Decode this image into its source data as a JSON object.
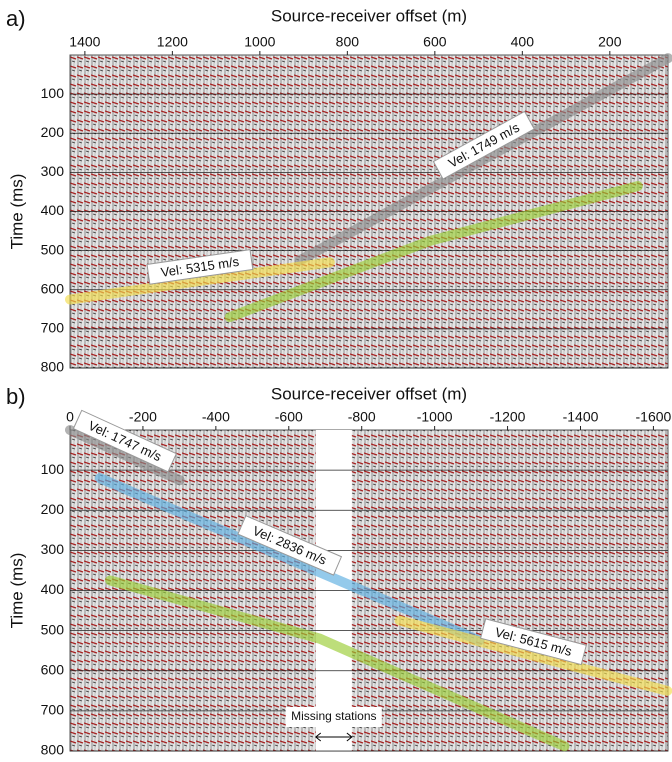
{
  "chart_data": [
    {
      "type": "line",
      "panel": "a)",
      "x_label": "Source-receiver offset (m)",
      "y_label": "Time (ms)",
      "xlim": [
        1434,
        67
      ],
      "ylim": [
        0,
        800
      ],
      "xticks": [
        1400,
        1200,
        1000,
        800,
        600,
        400,
        200
      ],
      "yticks": [
        100,
        200,
        300,
        400,
        500,
        600,
        700,
        800
      ],
      "grid": true,
      "series": [
        {
          "name": "Vel: 1749 m/s",
          "color": "#8a8a8a",
          "x": [
            67,
            909
          ],
          "values": [
            8,
            525
          ]
        },
        {
          "color": "#9acd32",
          "x": [
            136,
            611,
            1069
          ],
          "values": [
            335,
            475,
            670
          ]
        },
        {
          "name": "Vel: 5315 m/s",
          "color": "#f3dc4a",
          "x": [
            840,
            1434
          ],
          "values": [
            530,
            625
          ]
        }
      ]
    },
    {
      "type": "line",
      "panel": "b)",
      "x_label": "Source-receiver offset (m)",
      "y_label": "Time (ms)",
      "xlim": [
        0,
        -1640
      ],
      "ylim": [
        0,
        800
      ],
      "xticks": [
        0,
        -200,
        -400,
        -600,
        -800,
        -1000,
        -1200,
        -1400,
        -1600
      ],
      "yticks": [
        100,
        200,
        300,
        400,
        500,
        600,
        700,
        800
      ],
      "grid": true,
      "series": [
        {
          "name": "Vel: 1747 m/s",
          "color": "#8a8a8a",
          "x": [
            0,
            -301
          ],
          "values": [
            0,
            125
          ]
        },
        {
          "name": "Vel: 2836 m/s",
          "color": "#5aaee0",
          "x": [
            -82,
            -1123
          ],
          "values": [
            120,
            525
          ]
        },
        {
          "name": "Vel: 5615 m/s",
          "color": "#f3dc4a",
          "x": [
            -904,
            -1638
          ],
          "values": [
            475,
            650
          ]
        },
        {
          "color": "#9acd32",
          "x": [
            -110,
            -685,
            -1356
          ],
          "values": [
            375,
            520,
            788
          ]
        }
      ],
      "gap": {
        "label": "Missing stations",
        "x": [
          -674,
          -773
        ]
      }
    }
  ]
}
